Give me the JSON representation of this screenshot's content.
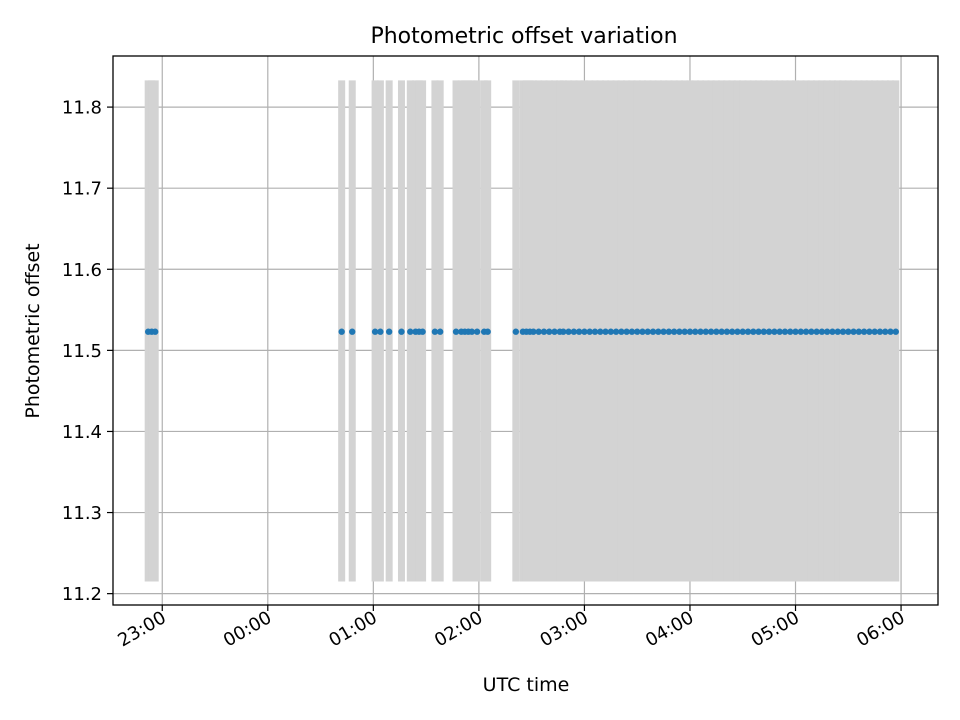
{
  "chart_data": {
    "type": "scatter",
    "title": "Photometric offset variation",
    "xlabel": "UTC time",
    "ylabel": "Photometric offset",
    "grid": true,
    "x_tick_labels": [
      "23:00",
      "00:00",
      "01:00",
      "02:00",
      "03:00",
      "04:00",
      "05:00",
      "06:00"
    ],
    "x_range": [
      "22:32",
      "06:21"
    ],
    "y_ticks": [
      11.2,
      11.3,
      11.4,
      11.5,
      11.6,
      11.7,
      11.8
    ],
    "ylim": [
      11.186,
      11.863
    ],
    "error_bar_range": [
      11.215,
      11.833
    ],
    "colors": {
      "points": "#1f77b4",
      "error_bars": "#d3d3d3",
      "grid": "#b0b0b0"
    },
    "y_value": 11.523,
    "x": [
      "22:52",
      "22:54",
      "22:56",
      "00:42",
      "00:48",
      "01:01",
      "01:04",
      "01:09",
      "01:16",
      "01:21",
      "01:24",
      "01:26",
      "01:28",
      "01:35",
      "01:38",
      "01:47",
      "01:50",
      "01:52",
      "01:54",
      "01:56",
      "01:59",
      "02:03",
      "02:05",
      "02:21",
      "02:25",
      "02:27",
      "02:29",
      "02:31",
      "02:34",
      "02:37",
      "02:40",
      "02:43",
      "02:46",
      "02:48",
      "02:51",
      "02:54",
      "02:57",
      "03:00",
      "03:03",
      "03:06",
      "03:09",
      "03:12",
      "03:15",
      "03:18",
      "03:21",
      "03:24",
      "03:27",
      "03:30",
      "03:33",
      "03:36",
      "03:39",
      "03:42",
      "03:45",
      "03:48",
      "03:51",
      "03:54",
      "03:57",
      "04:00",
      "04:03",
      "04:06",
      "04:09",
      "04:12",
      "04:15",
      "04:18",
      "04:21",
      "04:24",
      "04:27",
      "04:30",
      "04:33",
      "04:36",
      "04:39",
      "04:42",
      "04:45",
      "04:48",
      "04:51",
      "04:54",
      "04:57",
      "05:00",
      "05:03",
      "05:06",
      "05:09",
      "05:12",
      "05:15",
      "05:18",
      "05:21",
      "05:24",
      "05:27",
      "05:30",
      "05:33",
      "05:36",
      "05:39",
      "05:42",
      "05:45",
      "05:48",
      "05:51",
      "05:54",
      "05:57"
    ]
  }
}
